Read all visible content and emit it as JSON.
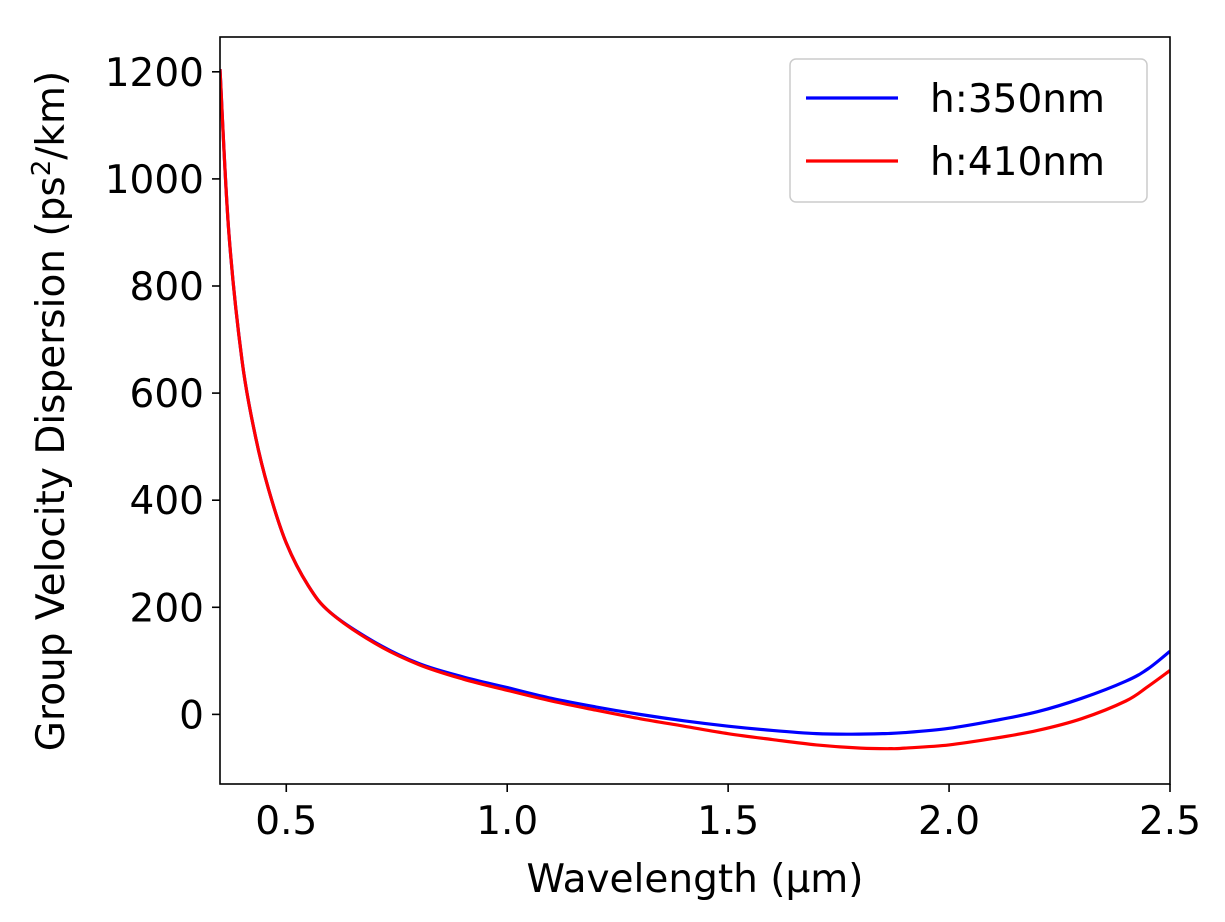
{
  "chart_data": {
    "type": "line",
    "title": "",
    "xlabel": "Wavelength (μm)",
    "ylabel_main": "Group Velocity Dispersion (ps",
    "ylabel_sup": "2",
    "ylabel_tail": "/km)",
    "xlim": [
      0.35,
      2.5
    ],
    "ylim": [
      -130,
      1265
    ],
    "xticks": [
      0.5,
      1.0,
      1.5,
      2.0,
      2.5
    ],
    "xtick_labels": [
      "0.5",
      "1.0",
      "1.5",
      "2.0",
      "2.5"
    ],
    "yticks": [
      0,
      200,
      400,
      600,
      800,
      1000,
      1200
    ],
    "ytick_labels": [
      "0",
      "200",
      "400",
      "600",
      "800",
      "1000",
      "1200"
    ],
    "legend_position": "top-right",
    "series": [
      {
        "name": "h:350nm",
        "color": "#0000ff",
        "x": [
          0.35,
          0.37,
          0.4,
          0.43,
          0.46,
          0.5,
          0.55,
          0.6,
          0.7,
          0.8,
          0.9,
          1.0,
          1.1,
          1.2,
          1.3,
          1.4,
          1.5,
          1.6,
          1.7,
          1.78,
          1.85,
          1.9,
          2.0,
          2.1,
          2.2,
          2.3,
          2.4,
          2.45,
          2.5
        ],
        "y": [
          1205,
          900,
          660,
          520,
          420,
          320,
          240,
          190,
          135,
          95,
          70,
          50,
          30,
          14,
          0,
          -12,
          -22,
          -30,
          -36,
          -37,
          -36,
          -34,
          -26,
          -12,
          5,
          30,
          62,
          85,
          118
        ]
      },
      {
        "name": "h:410nm",
        "color": "#ff0000",
        "x": [
          0.35,
          0.37,
          0.4,
          0.43,
          0.46,
          0.5,
          0.55,
          0.6,
          0.7,
          0.8,
          0.9,
          1.0,
          1.1,
          1.2,
          1.3,
          1.4,
          1.5,
          1.6,
          1.7,
          1.8,
          1.87,
          1.9,
          2.0,
          2.1,
          2.2,
          2.3,
          2.4,
          2.45,
          2.5
        ],
        "y": [
          1205,
          900,
          660,
          520,
          420,
          320,
          240,
          190,
          133,
          93,
          66,
          45,
          25,
          8,
          -8,
          -22,
          -36,
          -47,
          -57,
          -63,
          -64,
          -63,
          -57,
          -45,
          -30,
          -8,
          25,
          52,
          82
        ]
      }
    ]
  }
}
